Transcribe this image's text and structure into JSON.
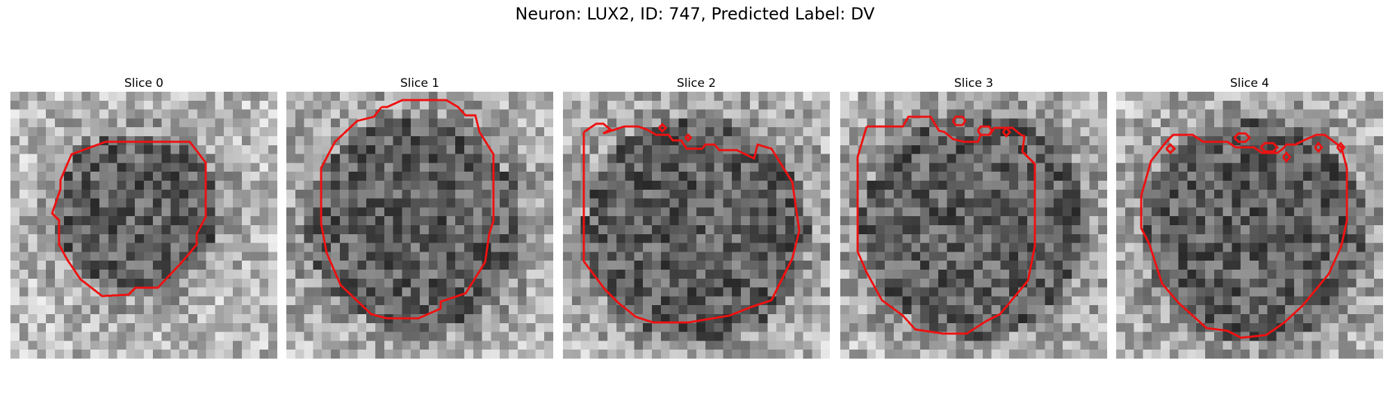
{
  "figure": {
    "title": "Neuron: LUX2, ID: 747, Predicted Label: DV"
  },
  "panels": [
    {
      "title": "Slice 0"
    },
    {
      "title": "Slice 1"
    },
    {
      "title": "Slice 2"
    },
    {
      "title": "Slice 3"
    },
    {
      "title": "Slice 4"
    }
  ],
  "contour_color": "#ee1111"
}
